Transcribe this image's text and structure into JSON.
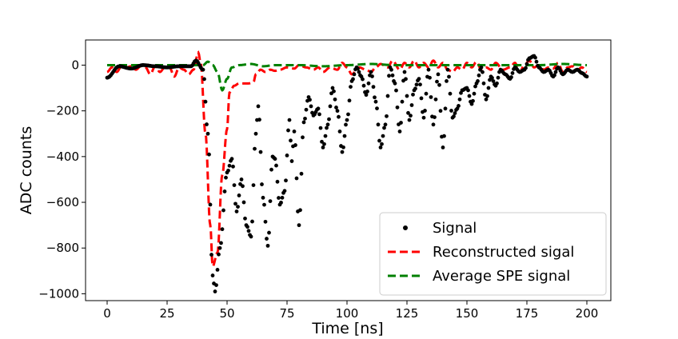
{
  "chart_data": {
    "type": "line",
    "xlabel": "Time [ns]",
    "ylabel": "ADC counts",
    "xlim": [
      -9,
      210
    ],
    "ylim": [
      -1030,
      110
    ],
    "x_ticks": [
      0,
      25,
      50,
      75,
      100,
      125,
      150,
      175,
      200
    ],
    "x_tick_labels": [
      "0",
      "25",
      "50",
      "75",
      "100",
      "125",
      "150",
      "175",
      "200"
    ],
    "y_ticks": [
      -1000,
      -800,
      -600,
      -400,
      -200,
      0
    ],
    "y_tick_labels": [
      "−1000",
      "−800",
      "−600",
      "−400",
      "−200",
      "0"
    ],
    "legend_position": "lower-right",
    "series": [
      {
        "name": "Signal",
        "style": "dots",
        "color": "#000000",
        "sampling_ns": 0.5,
        "points": [
          [
            0,
            -55
          ],
          [
            5,
            -5
          ],
          [
            10,
            -15
          ],
          [
            15,
            0
          ],
          [
            20,
            -5
          ],
          [
            25,
            -10
          ],
          [
            30,
            -5
          ],
          [
            35,
            -5
          ],
          [
            37,
            20
          ],
          [
            40,
            -20
          ],
          [
            42,
            -300
          ],
          [
            44,
            -920
          ],
          [
            45,
            -990
          ],
          [
            47,
            -800
          ],
          [
            50,
            -470
          ],
          [
            52,
            -410
          ],
          [
            54,
            -640
          ],
          [
            56,
            -500
          ],
          [
            58,
            -700
          ],
          [
            60,
            -750
          ],
          [
            62,
            -300
          ],
          [
            63,
            -180
          ],
          [
            65,
            -580
          ],
          [
            67,
            -790
          ],
          [
            69,
            -400
          ],
          [
            70,
            -410
          ],
          [
            72,
            -610
          ],
          [
            74,
            -550
          ],
          [
            76,
            -240
          ],
          [
            77,
            -420
          ],
          [
            78,
            -290
          ],
          [
            80,
            -700
          ],
          [
            82,
            -250
          ],
          [
            84,
            -140
          ],
          [
            86,
            -220
          ],
          [
            88,
            -190
          ],
          [
            90,
            -360
          ],
          [
            92,
            -260
          ],
          [
            94,
            -100
          ],
          [
            96,
            -200
          ],
          [
            98,
            -380
          ],
          [
            100,
            -240
          ],
          [
            102,
            -70
          ],
          [
            104,
            -10
          ],
          [
            106,
            -50
          ],
          [
            108,
            -130
          ],
          [
            110,
            -30
          ],
          [
            112,
            -160
          ],
          [
            114,
            -360
          ],
          [
            116,
            -260
          ],
          [
            118,
            -10
          ],
          [
            120,
            -80
          ],
          [
            122,
            -290
          ],
          [
            124,
            -30
          ],
          [
            126,
            -240
          ],
          [
            128,
            -110
          ],
          [
            130,
            -60
          ],
          [
            132,
            -230
          ],
          [
            134,
            -20
          ],
          [
            136,
            -260
          ],
          [
            138,
            -40
          ],
          [
            140,
            -360
          ],
          [
            142,
            -20
          ],
          [
            144,
            -230
          ],
          [
            146,
            -190
          ],
          [
            148,
            -110
          ],
          [
            150,
            -100
          ],
          [
            152,
            -170
          ],
          [
            154,
            -80
          ],
          [
            156,
            -10
          ],
          [
            158,
            -150
          ],
          [
            160,
            -50
          ],
          [
            162,
            -90
          ],
          [
            164,
            -20
          ],
          [
            166,
            -40
          ],
          [
            168,
            -60
          ],
          [
            170,
            -10
          ],
          [
            172,
            -30
          ],
          [
            174,
            -20
          ],
          [
            176,
            30
          ],
          [
            178,
            40
          ],
          [
            180,
            -10
          ],
          [
            182,
            -30
          ],
          [
            184,
            -20
          ],
          [
            186,
            -50
          ],
          [
            188,
            -10
          ],
          [
            190,
            -40
          ],
          [
            192,
            -20
          ],
          [
            194,
            -30
          ],
          [
            196,
            -20
          ],
          [
            198,
            -35
          ],
          [
            200,
            -50
          ]
        ]
      },
      {
        "name": "Reconstructed sigal",
        "style": "dashed",
        "color": "#ff0000",
        "points": [
          [
            0,
            -30
          ],
          [
            2,
            -10
          ],
          [
            4,
            -30
          ],
          [
            6,
            -5
          ],
          [
            8,
            -10
          ],
          [
            10,
            -5
          ],
          [
            12,
            -20
          ],
          [
            14,
            -5
          ],
          [
            16,
            -10
          ],
          [
            18,
            -40
          ],
          [
            20,
            -5
          ],
          [
            22,
            -30
          ],
          [
            24,
            -10
          ],
          [
            26,
            -10
          ],
          [
            28,
            -50
          ],
          [
            30,
            -10
          ],
          [
            32,
            -20
          ],
          [
            34,
            -40
          ],
          [
            36,
            -20
          ],
          [
            38,
            55
          ],
          [
            39,
            10
          ],
          [
            41,
            -300
          ],
          [
            43,
            -700
          ],
          [
            44,
            -880
          ],
          [
            46,
            -820
          ],
          [
            48,
            -480
          ],
          [
            50,
            -280
          ],
          [
            51,
            -120
          ],
          [
            53,
            -90
          ],
          [
            55,
            -80
          ],
          [
            57,
            -80
          ],
          [
            59,
            -80
          ],
          [
            61,
            -75
          ],
          [
            62,
            -40
          ],
          [
            64,
            -20
          ],
          [
            66,
            -30
          ],
          [
            68,
            -20
          ],
          [
            70,
            -25
          ],
          [
            72,
            -20
          ],
          [
            75,
            -10
          ],
          [
            78,
            -15
          ],
          [
            80,
            0
          ],
          [
            83,
            -10
          ],
          [
            86,
            -20
          ],
          [
            88,
            -10
          ],
          [
            90,
            -30
          ],
          [
            93,
            -10
          ],
          [
            96,
            -20
          ],
          [
            98,
            10
          ],
          [
            100,
            -10
          ],
          [
            102,
            -40
          ],
          [
            105,
            -10
          ],
          [
            108,
            -20
          ],
          [
            110,
            -30
          ],
          [
            112,
            -10
          ],
          [
            114,
            5
          ],
          [
            117,
            -10
          ],
          [
            119,
            20
          ],
          [
            122,
            -20
          ],
          [
            124,
            10
          ],
          [
            126,
            -10
          ],
          [
            128,
            20
          ],
          [
            130,
            -10
          ],
          [
            132,
            10
          ],
          [
            134,
            -10
          ],
          [
            136,
            20
          ],
          [
            138,
            -10
          ],
          [
            140,
            10
          ],
          [
            142,
            -20
          ],
          [
            144,
            -30
          ],
          [
            146,
            -10
          ],
          [
            148,
            -20
          ],
          [
            150,
            10
          ],
          [
            152,
            -10
          ],
          [
            154,
            15
          ],
          [
            156,
            -20
          ],
          [
            158,
            -10
          ],
          [
            160,
            -20
          ],
          [
            162,
            10
          ],
          [
            165,
            -20
          ],
          [
            168,
            -10
          ],
          [
            170,
            10
          ],
          [
            172,
            -30
          ],
          [
            174,
            0
          ],
          [
            176,
            20
          ],
          [
            178,
            -10
          ],
          [
            180,
            0
          ],
          [
            182,
            -20
          ],
          [
            184,
            -10
          ],
          [
            186,
            -15
          ],
          [
            188,
            10
          ],
          [
            190,
            -30
          ],
          [
            192,
            -10
          ],
          [
            194,
            -5
          ],
          [
            196,
            -20
          ],
          [
            198,
            -10
          ],
          [
            200,
            -30
          ]
        ]
      },
      {
        "name": "Average SPE signal",
        "style": "dashed",
        "color": "#008000",
        "points": [
          [
            0,
            0
          ],
          [
            10,
            0
          ],
          [
            20,
            0
          ],
          [
            30,
            0
          ],
          [
            36,
            0
          ],
          [
            40,
            0
          ],
          [
            42,
            15
          ],
          [
            44,
            0
          ],
          [
            46,
            -30
          ],
          [
            48,
            -110
          ],
          [
            50,
            -60
          ],
          [
            52,
            -10
          ],
          [
            55,
            0
          ],
          [
            60,
            5
          ],
          [
            65,
            -5
          ],
          [
            70,
            0
          ],
          [
            80,
            0
          ],
          [
            90,
            -5
          ],
          [
            100,
            0
          ],
          [
            110,
            5
          ],
          [
            120,
            0
          ],
          [
            130,
            0
          ],
          [
            140,
            0
          ],
          [
            150,
            0
          ],
          [
            160,
            0
          ],
          [
            170,
            0
          ],
          [
            180,
            0
          ],
          [
            190,
            5
          ],
          [
            200,
            0
          ]
        ]
      }
    ]
  }
}
